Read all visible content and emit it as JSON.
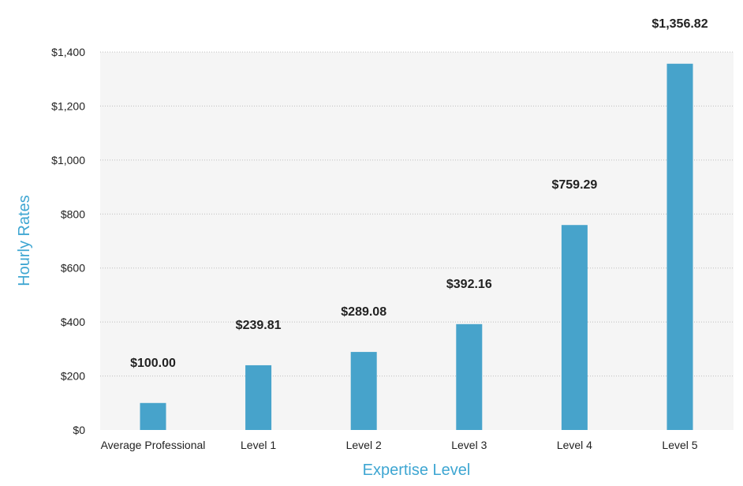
{
  "chart_data": {
    "type": "bar",
    "categories": [
      "Average Professional",
      "Level 1",
      "Level 2",
      "Level 3",
      "Level 4",
      "Level 5"
    ],
    "values": [
      100.0,
      239.81,
      289.08,
      392.16,
      759.29,
      1356.82
    ],
    "data_labels": [
      "$100.00",
      "$239.81",
      "$289.08",
      "$392.16",
      "$759.29",
      "$1,356.82"
    ],
    "xlabel": "Expertise Level",
    "ylabel": "Hourly Rates",
    "ylim": [
      0,
      1400
    ],
    "yticks": [
      0,
      200,
      400,
      600,
      800,
      1000,
      1200,
      1400
    ],
    "ytick_labels": [
      "$0",
      "$200",
      "$400",
      "$600",
      "$800",
      "$1,000",
      "$1,200",
      "$1,400"
    ],
    "grid": true,
    "colors": {
      "bar": "#47a3cb",
      "plot_background": "#f5f5f5",
      "axis_title": "#3ea6d2",
      "gridline": "#bdbdbd"
    }
  }
}
